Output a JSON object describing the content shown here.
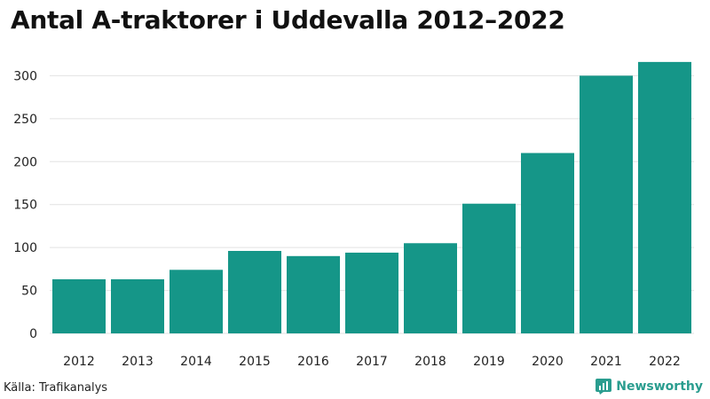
{
  "title": "Antal A-traktorer i Uddevalla 2012–2022",
  "source": "Källa: Trafikanalys",
  "brand": {
    "name": "Newsworthy",
    "icon": "newsworthy-logo-icon"
  },
  "colors": {
    "bar": "#159688",
    "grid": "#e2e2e2",
    "brand": "#2a9d8f"
  },
  "chart_data": {
    "type": "bar",
    "title": "Antal A-traktorer i Uddevalla 2012–2022",
    "xlabel": "",
    "ylabel": "",
    "categories": [
      "2012",
      "2013",
      "2014",
      "2015",
      "2016",
      "2017",
      "2018",
      "2019",
      "2020",
      "2021",
      "2022"
    ],
    "values": [
      63,
      63,
      74,
      96,
      90,
      94,
      105,
      151,
      210,
      300,
      316
    ],
    "ylim": [
      0,
      320
    ],
    "yticks": [
      0,
      50,
      100,
      150,
      200,
      250,
      300
    ],
    "grid": true,
    "legend": "none"
  }
}
